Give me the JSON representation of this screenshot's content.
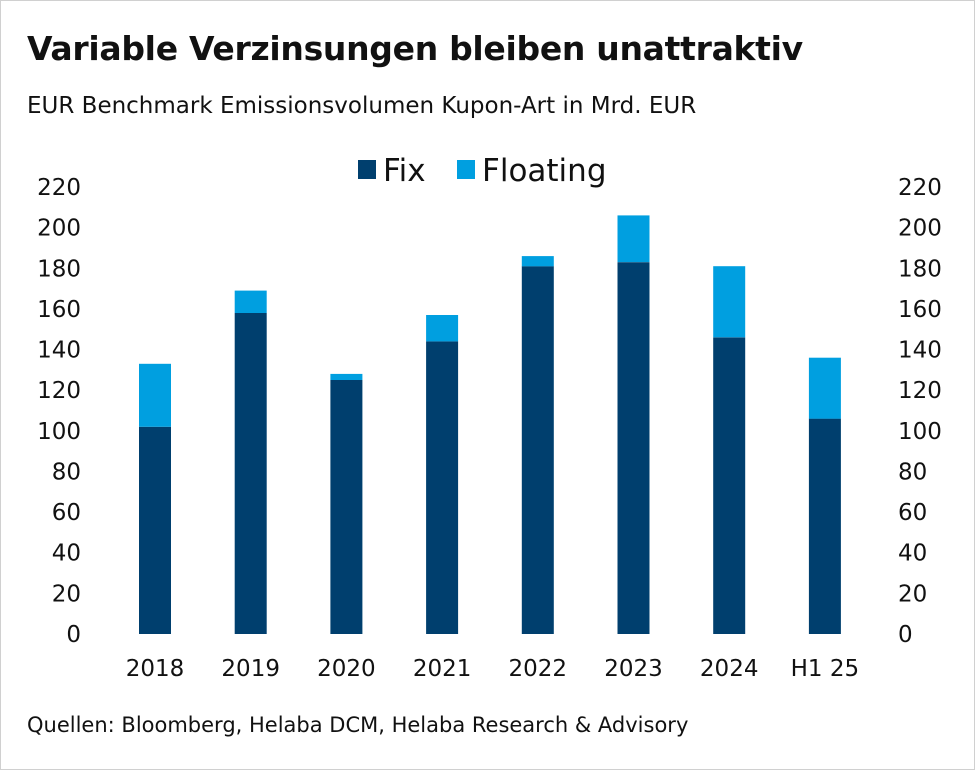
{
  "title": "Variable Verzinsungen bleiben unattraktiv",
  "subtitle": "EUR Benchmark Emissionsvolumen Kupon-Art in Mrd. EUR",
  "source": "Quellen: Bloomberg, Helaba DCM, Helaba Research & Advisory",
  "chart_data": {
    "type": "bar",
    "stacked": true,
    "categories": [
      "2018",
      "2019",
      "2020",
      "2021",
      "2022",
      "2023",
      "2024",
      "H1 25"
    ],
    "series": [
      {
        "name": "Fix",
        "color": "#003f6e",
        "values": [
          102,
          158,
          125,
          144,
          181,
          183,
          146,
          106
        ]
      },
      {
        "name": "Floating",
        "color": "#009fe0",
        "values": [
          31,
          11,
          3,
          13,
          5,
          23,
          35,
          30
        ]
      }
    ],
    "ylim": [
      0,
      220
    ],
    "yticks": [
      0,
      20,
      40,
      60,
      80,
      100,
      120,
      140,
      160,
      180,
      200,
      220
    ],
    "ylabel_left": "",
    "ylabel_right": "",
    "xlabel": "",
    "legend_position": "top-center",
    "grid": false
  }
}
